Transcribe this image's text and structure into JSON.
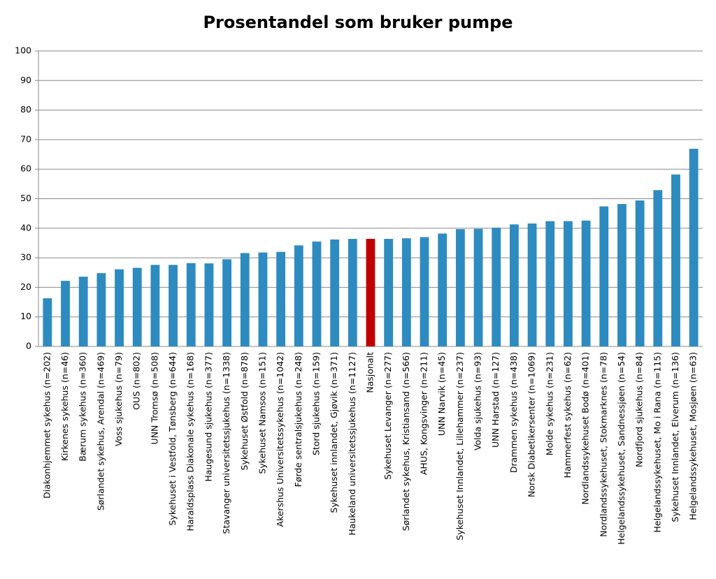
{
  "chart_data": {
    "type": "bar",
    "title": "Prosentandel som bruker pumpe",
    "categories": [
      "Diakonhjemmet sykehus (n=202)",
      "Kirkenes sykehus (n=46)",
      "Bærum sykehus (n=360)",
      "Sørlandet sykehus, Arendal (n=469)",
      "Voss sjukehus (n=79)",
      "OUS (n=802)",
      "UNN Tromsø (n=508)",
      "Sykehuset i Vestfold, Tønsberg (n=644)",
      "Haraldsplass Diakonale sykehus (n=168)",
      "Haugesund sjukehus (n=377)",
      "Stavanger universitetssjukehus (n=1338)",
      "Sykehuset Østfold (n=878)",
      "Sykehuset Namsos (n=151)",
      "Akershus Universitetssykehus (n=1042)",
      "Førde sentralsjukehus (n=248)",
      "Stord sjukehus (n=159)",
      "Sykehuset innlandet, Gjøvik (n=371)",
      "Haukeland universitetssjukehus (n=1127)",
      "Nasjonalt",
      "Sykehuset Levanger (n=277)",
      "Sørlandet sykehus, Kristiansand (n=566)",
      "AHUS, Kongsvinger (n=211)",
      "UNN Narvik (n=45)",
      "Sykehuset Innlandet, Lillehammer (n=237)",
      "Volda sjukehus (n=93)",
      "UNN Harstad (n=127)",
      "Drammen sykehus (n=438)",
      "Norsk Diabetikersenter (n=1069)",
      "Molde sykehus (n=231)",
      "Hammerfest sykehus (n=62)",
      "Nordlandssykehuset Bodø (n=401)",
      "Nordlandssykehuset, Stokmarknes (n=78)",
      "Helgelandssykehuset, Sandnessjøen (n=54)",
      "Nordfjord sjukehus (n=84)",
      "Helgelandssykehuset, Mo i Rana (n=115)",
      "Sykehuset Innlandet, Elverum (n=136)",
      "Helgelandssykehuset, Mosjøen (n=63)"
    ],
    "values": [
      16.3,
      22.2,
      23.6,
      24.8,
      26.1,
      26.6,
      27.6,
      27.6,
      28.2,
      28.1,
      29.5,
      31.6,
      31.8,
      32.0,
      34.2,
      35.5,
      36.2,
      36.4,
      36.4,
      36.4,
      36.6,
      37.0,
      38.2,
      39.7,
      39.8,
      40.2,
      41.3,
      41.6,
      42.4,
      42.4,
      42.6,
      47.4,
      48.2,
      49.4,
      52.9,
      58.2,
      66.9
    ],
    "colors": [
      "#2e8bc0",
      "#2e8bc0",
      "#2e8bc0",
      "#2e8bc0",
      "#2e8bc0",
      "#2e8bc0",
      "#2e8bc0",
      "#2e8bc0",
      "#2e8bc0",
      "#2e8bc0",
      "#2e8bc0",
      "#2e8bc0",
      "#2e8bc0",
      "#2e8bc0",
      "#2e8bc0",
      "#2e8bc0",
      "#2e8bc0",
      "#2e8bc0",
      "#c00000",
      "#2e8bc0",
      "#2e8bc0",
      "#2e8bc0",
      "#2e8bc0",
      "#2e8bc0",
      "#2e8bc0",
      "#2e8bc0",
      "#2e8bc0",
      "#2e8bc0",
      "#2e8bc0",
      "#2e8bc0",
      "#2e8bc0",
      "#2e8bc0",
      "#2e8bc0",
      "#2e8bc0",
      "#2e8bc0",
      "#2e8bc0",
      "#2e8bc0"
    ],
    "ylim": [
      0,
      100
    ],
    "yticks": [
      0,
      10,
      20,
      30,
      40,
      50,
      60,
      70,
      80,
      90,
      100
    ],
    "grid": true
  }
}
